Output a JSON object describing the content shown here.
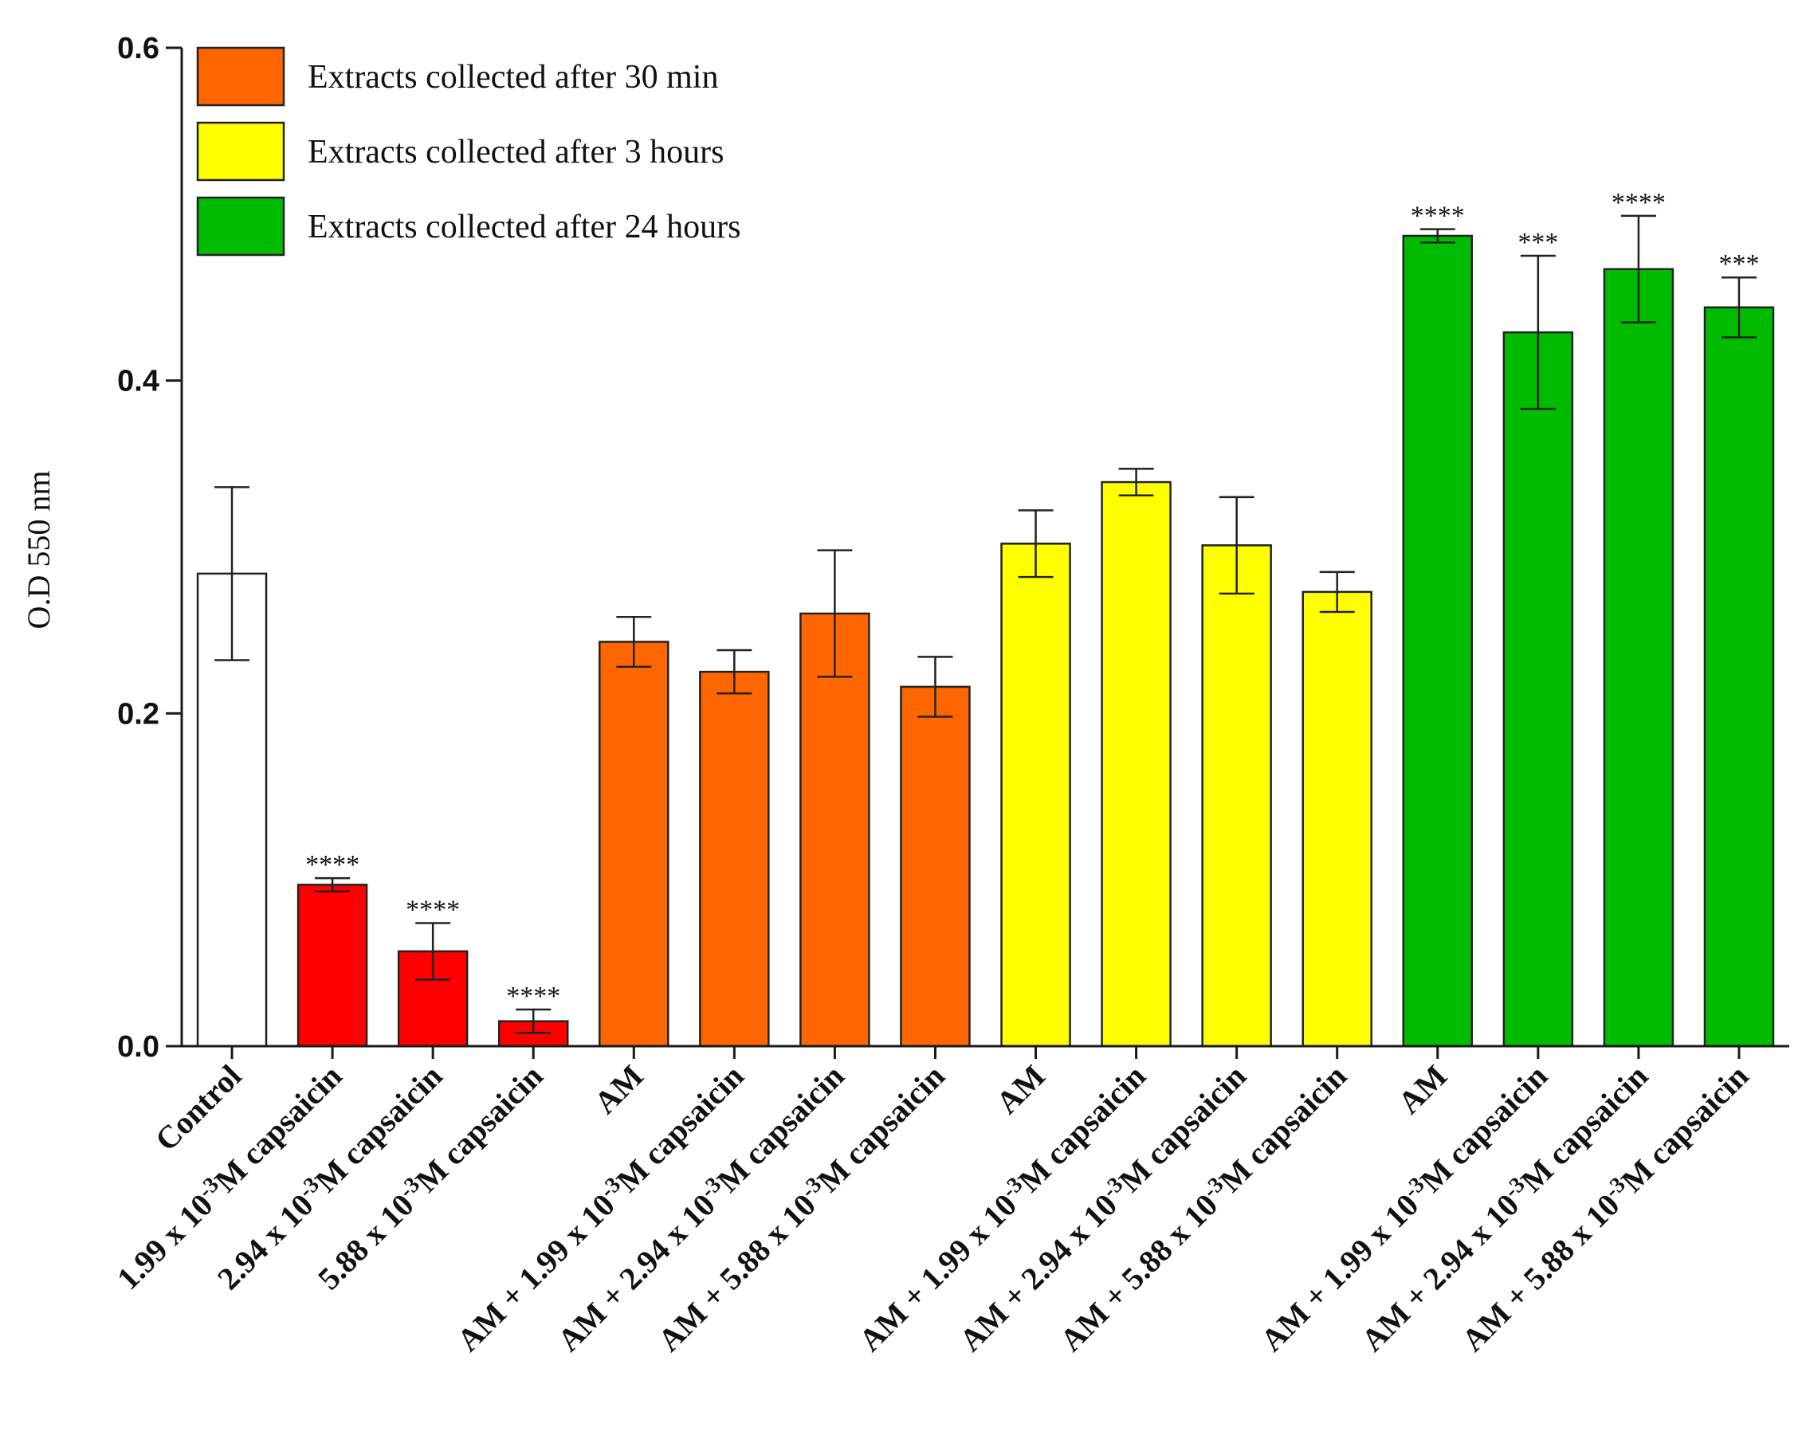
{
  "chart_data": {
    "type": "bar",
    "title": "",
    "xlabel": "",
    "ylabel": "O.D 550 nm",
    "ylim": [
      0.0,
      0.6
    ],
    "yticks": [
      "0.0",
      "0.2",
      "0.4",
      "0.6"
    ],
    "ytick_values": [
      0.0,
      0.2,
      0.4,
      0.6
    ],
    "legend": {
      "position": "top-left",
      "entries": [
        {
          "label": "Extracts collected after 30 min",
          "color": "#ff6600"
        },
        {
          "label": "Extracts collected after 3 hours",
          "color": "#ffff00"
        },
        {
          "label": "Extracts collected after 24 hours",
          "color": "#00bb00"
        }
      ]
    },
    "bars": [
      {
        "label": [
          "Control"
        ],
        "value": 0.284,
        "error": 0.052,
        "color": "#ffffff",
        "sig": ""
      },
      {
        "label": [
          "1.99 x 10",
          "-3",
          "M capsaicin"
        ],
        "value": 0.097,
        "error": 0.004,
        "color": "#ff0000",
        "sig": "****"
      },
      {
        "label": [
          "2.94 x 10",
          "-3",
          "M capsaicin"
        ],
        "value": 0.057,
        "error": 0.017,
        "color": "#ff0000",
        "sig": "****"
      },
      {
        "label": [
          "5.88 x 10",
          "-3",
          "M capsaicin"
        ],
        "value": 0.015,
        "error": 0.007,
        "color": "#ff0000",
        "sig": "****"
      },
      {
        "label": [
          "AM"
        ],
        "value": 0.243,
        "error": 0.015,
        "color": "#ff6600",
        "sig": ""
      },
      {
        "label": [
          "AM + 1.99 x 10",
          "-3",
          "M capsaicin"
        ],
        "value": 0.225,
        "error": 0.013,
        "color": "#ff6600",
        "sig": ""
      },
      {
        "label": [
          "AM + 2.94 x 10",
          "-3",
          "M capsaicin"
        ],
        "value": 0.26,
        "error": 0.038,
        "color": "#ff6600",
        "sig": ""
      },
      {
        "label": [
          "AM + 5.88 x 10",
          "-3",
          "M capsaicin"
        ],
        "value": 0.216,
        "error": 0.018,
        "color": "#ff6600",
        "sig": ""
      },
      {
        "label": [
          "AM"
        ],
        "value": 0.302,
        "error": 0.02,
        "color": "#ffff00",
        "sig": ""
      },
      {
        "label": [
          "AM + 1.99 x 10",
          "-3",
          "M capsaicin"
        ],
        "value": 0.339,
        "error": 0.008,
        "color": "#ffff00",
        "sig": ""
      },
      {
        "label": [
          "AM + 2.94 x 10",
          "-3",
          "M capsaicin"
        ],
        "value": 0.301,
        "error": 0.029,
        "color": "#ffff00",
        "sig": ""
      },
      {
        "label": [
          "AM + 5.88 x 10",
          "-3",
          "M capsaicin"
        ],
        "value": 0.273,
        "error": 0.012,
        "color": "#ffff00",
        "sig": ""
      },
      {
        "label": [
          "AM"
        ],
        "value": 0.487,
        "error": 0.004,
        "color": "#00bb00",
        "sig": "****"
      },
      {
        "label": [
          "AM + 1.99 x 10",
          "-3",
          "M capsaicin"
        ],
        "value": 0.429,
        "error": 0.046,
        "color": "#00bb00",
        "sig": "***"
      },
      {
        "label": [
          "AM + 2.94 x 10",
          "-3",
          "M capsaicin"
        ],
        "value": 0.467,
        "error": 0.032,
        "color": "#00bb00",
        "sig": "****"
      },
      {
        "label": [
          "AM + 5.88 x 10",
          "-3",
          "M capsaicin"
        ],
        "value": 0.444,
        "error": 0.018,
        "color": "#00bb00",
        "sig": "***"
      }
    ]
  }
}
